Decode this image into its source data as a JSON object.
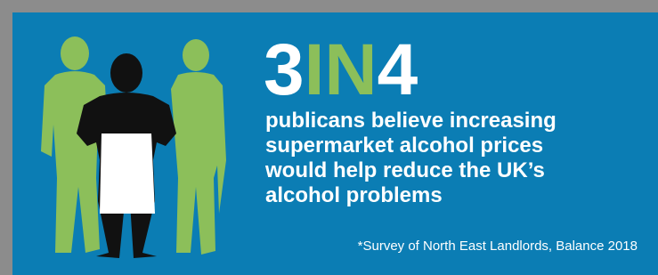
{
  "headline": {
    "number_before": "3",
    "word": "IN",
    "number_after": "4"
  },
  "statement": {
    "lines": [
      "publicans believe increasing",
      "supermarket alcohol prices",
      "would help reduce the UK’s",
      "alcohol problems"
    ]
  },
  "footnote": "*Survey of North East Landlords, Balance 2018"
}
